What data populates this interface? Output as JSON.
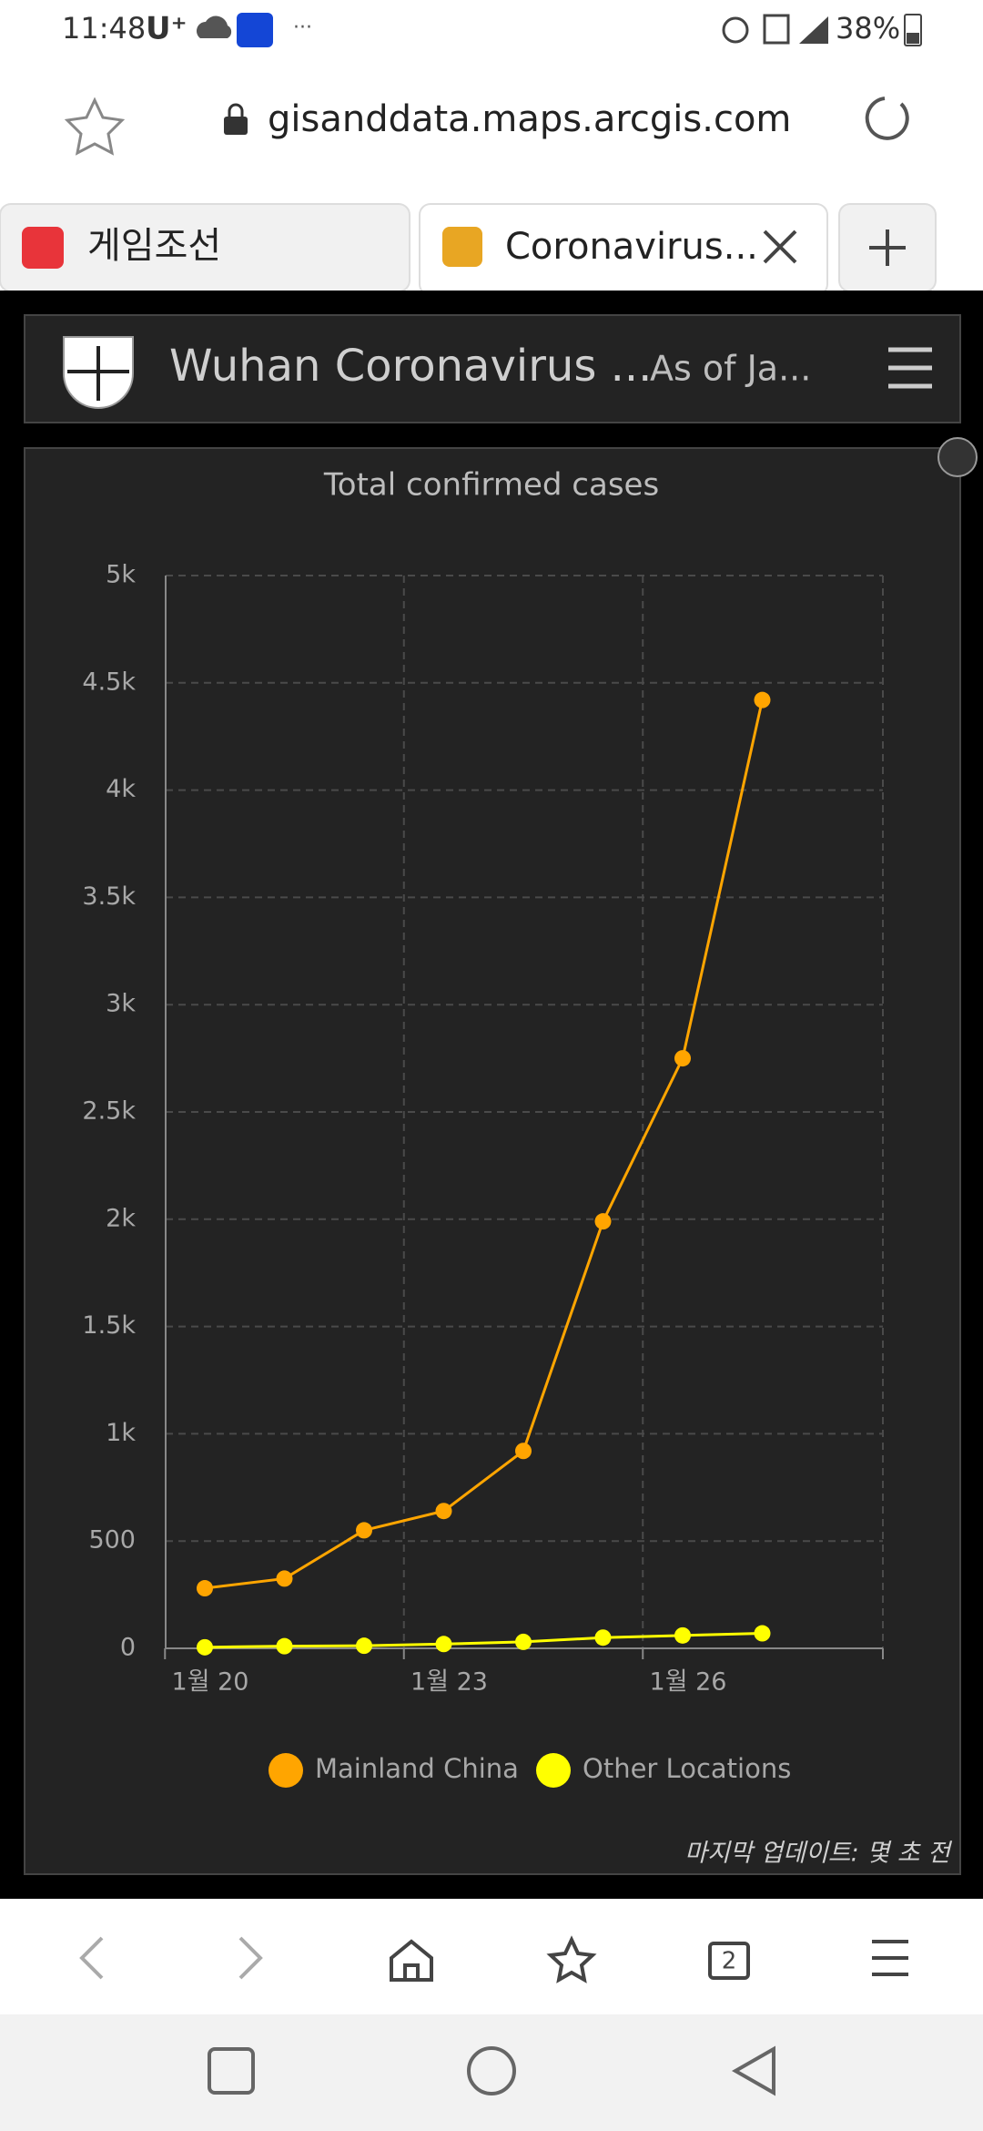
{
  "status_bar": {
    "time": "11:48",
    "carrier": "U⁺",
    "dots": "···",
    "battery": "38%"
  },
  "browser": {
    "url": "gisanddata.maps.arcgis.com",
    "tabs": [
      "게임조선",
      "Coronavirus..."
    ],
    "tab_count": "2"
  },
  "dashboard": {
    "title": "Wuhan Coronavirus ...",
    "subtitle": "As of Ja...",
    "footer": "마지막 업데이트: 몇 초 전"
  },
  "chart_data": {
    "type": "line",
    "title": "Total confirmed cases",
    "categories": [
      "1월 20",
      null,
      null,
      "1월 23",
      null,
      null,
      "1월 26",
      null
    ],
    "series": [
      {
        "name": "Mainland China",
        "color": "#ffa500",
        "values": [
          280,
          325,
          550,
          640,
          920,
          1990,
          2750,
          4420
        ]
      },
      {
        "name": "Other Locations",
        "color": "#ffff00",
        "values": [
          5,
          10,
          12,
          20,
          30,
          50,
          60,
          70
        ]
      }
    ],
    "ylim": [
      0,
      5000
    ],
    "yticks": [
      0,
      500,
      {
        "value": 1000,
        "label": "1k"
      },
      {
        "value": 1500,
        "label": "1.5k"
      },
      {
        "value": 2000,
        "label": "2k"
      },
      {
        "value": 2500,
        "label": "2.5k"
      },
      {
        "value": 3000,
        "label": "3k"
      },
      {
        "value": 3500,
        "label": "3.5k"
      },
      {
        "value": 4000,
        "label": "4k"
      },
      {
        "value": 4500,
        "label": "4.5k"
      },
      {
        "value": 5000,
        "label": "5k"
      }
    ],
    "grid": true,
    "legend": "bottom"
  }
}
